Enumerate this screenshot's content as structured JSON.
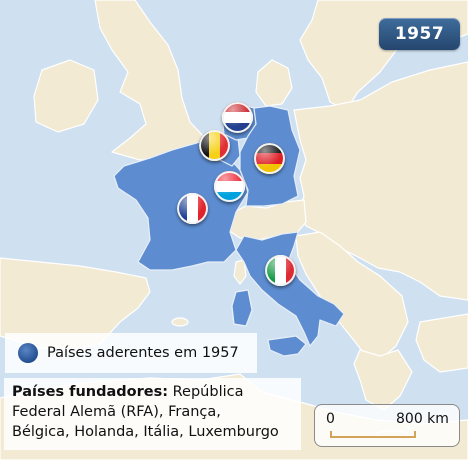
{
  "map": {
    "year": "1957",
    "legend": {
      "label": "Países aderentes em 1957",
      "color": "#2b5797"
    },
    "info": {
      "title": "Países fundadores:",
      "text_line1": " República",
      "text_line2": "Federal Alemã (RFA), França,",
      "text_line3": "Bélgica, Holanda, Itália, Luxemburgo"
    },
    "scale": {
      "min_label": "0",
      "max_label": "800 km"
    },
    "colors": {
      "sea": "#cfe0f1",
      "land": "#f2ead3",
      "border": "#ffffff",
      "member": "#5d8dd0",
      "member_border": "#e6eef8"
    },
    "countries": [
      {
        "name": "França",
        "flag_icon": "france-flag-icon"
      },
      {
        "name": "Bélgica",
        "flag_icon": "belgium-flag-icon"
      },
      {
        "name": "Holanda",
        "flag_icon": "netherlands-flag-icon"
      },
      {
        "name": "República Federal Alemã (RFA)",
        "flag_icon": "germany-flag-icon"
      },
      {
        "name": "Luxemburgo",
        "flag_icon": "luxembourg-flag-icon"
      },
      {
        "name": "Itália",
        "flag_icon": "italy-flag-icon"
      }
    ]
  }
}
